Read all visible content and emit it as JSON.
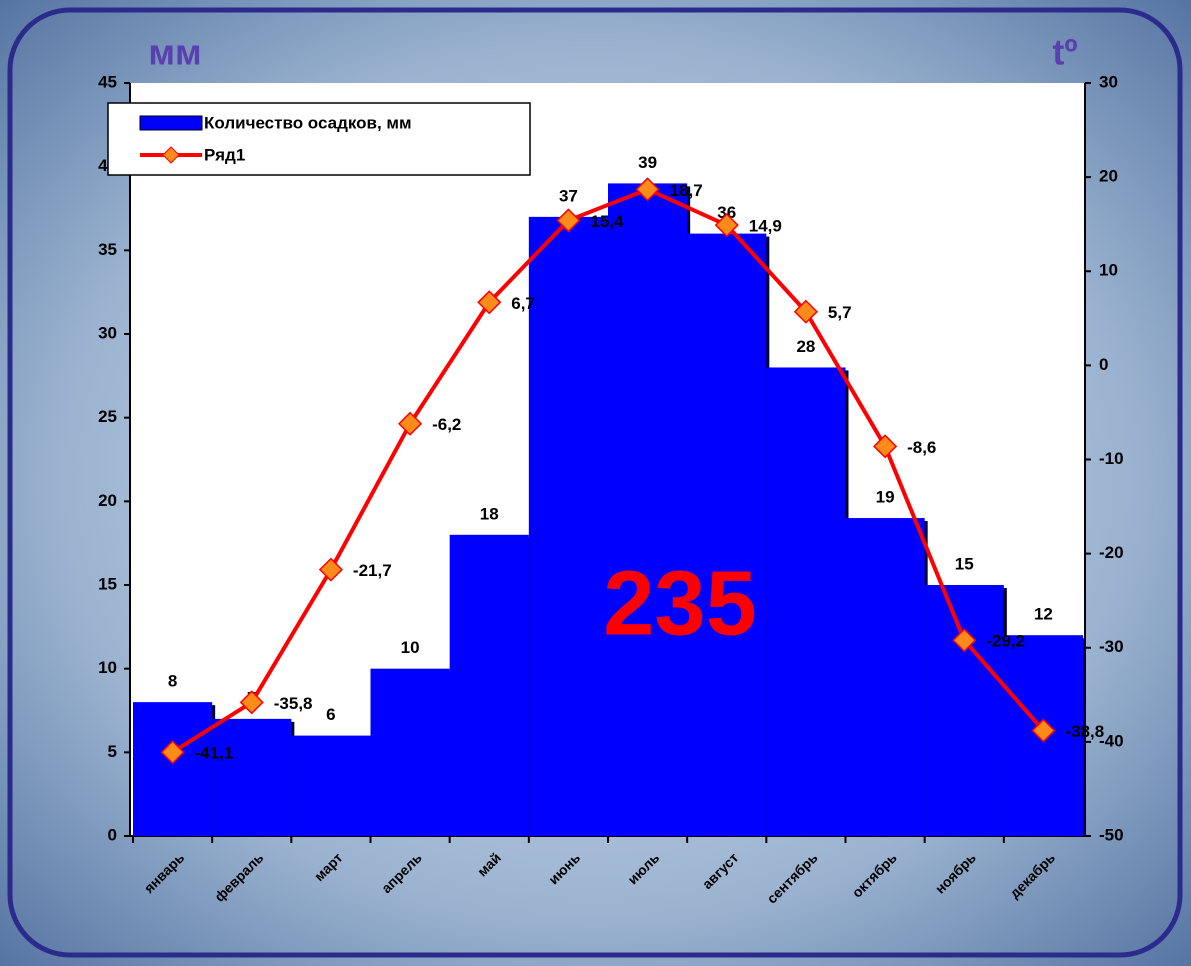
{
  "chart_data": {
    "type": "bar",
    "y_label": "мм",
    "y2_label": "tº",
    "annotation": "235",
    "categories": [
      "январь",
      "февраль",
      "март",
      "апрель",
      "май",
      "июнь",
      "июль",
      "август",
      "сентябрь",
      "октябрь",
      "ноябрь",
      "декабрь"
    ],
    "series": [
      {
        "name": "Количество осадков, мм",
        "type": "bar",
        "color": "#0000ff",
        "values": [
          8,
          7,
          6,
          10,
          18,
          37,
          39,
          36,
          28,
          19,
          15,
          12
        ]
      },
      {
        "name": "Ряд1",
        "type": "line",
        "axis": "y2",
        "color": "#ff0000",
        "marker_color": "#ff8c1a",
        "values": [
          -41.1,
          -35.8,
          -21.7,
          -6.2,
          6.7,
          15.4,
          18.7,
          14.9,
          5.7,
          -8.6,
          -29.2,
          -38.8
        ],
        "value_labels": [
          "-41,1",
          "-35,8",
          "-21,7",
          "-6,2",
          "6,7",
          "15,4",
          "18,7",
          "14,9",
          "5,7",
          "-8,6",
          "-29,2",
          "-38,8"
        ]
      }
    ],
    "ylim": [
      0,
      45
    ],
    "yticks": [
      0,
      5,
      10,
      15,
      20,
      25,
      30,
      35,
      40,
      45
    ],
    "y2lim": [
      -50,
      30
    ],
    "y2ticks": [
      -50,
      -40,
      -30,
      -20,
      -10,
      0,
      10,
      20,
      30
    ],
    "legend": "top-left"
  }
}
